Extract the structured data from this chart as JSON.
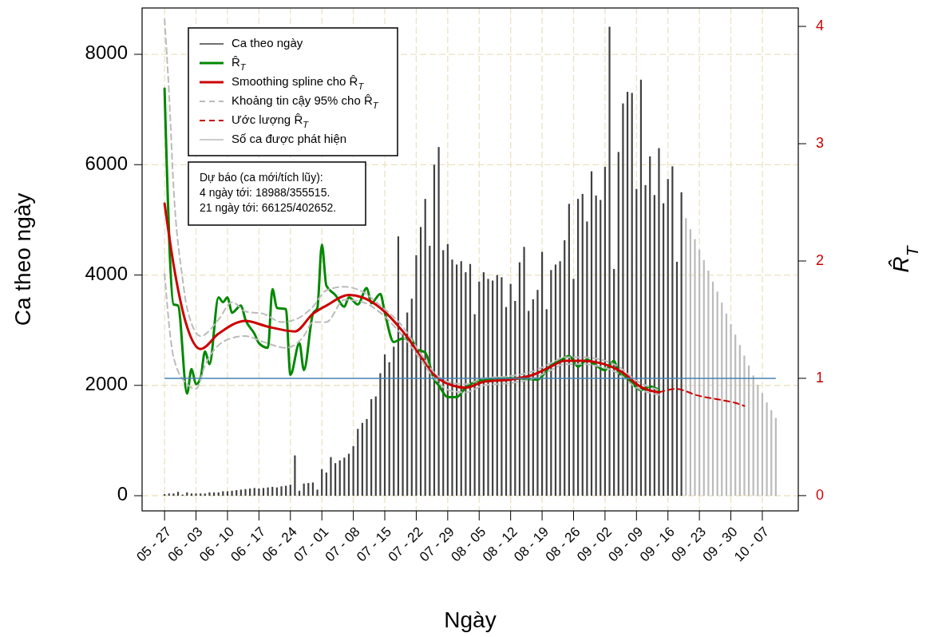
{
  "chart_data": {
    "type": "bar",
    "xlabel": "Ngày",
    "ylabel": "Ca theo ngày",
    "y2label": "R̂$_{T}$",
    "xlim": [
      "--05-22",
      "--10-15"
    ],
    "ylim": [
      -275,
      8840
    ],
    "y2lim": [
      -0.13,
      4.157
    ],
    "yticks": [
      0,
      2000,
      4000,
      6000,
      8000
    ],
    "y2ticks": [
      0,
      1,
      2,
      3,
      4
    ],
    "xticks": [
      {
        "value": "--05-27",
        "label": "05 - 27"
      },
      {
        "value": "--06-03",
        "label": "06 - 03"
      },
      {
        "value": "--06-10",
        "label": "06 - 10"
      },
      {
        "value": "--06-17",
        "label": "06 - 17"
      },
      {
        "value": "--06-24",
        "label": "06 - 24"
      },
      {
        "value": "--07-01",
        "label": "07 - 01"
      },
      {
        "value": "--07-08",
        "label": "07 - 08"
      },
      {
        "value": "--07-15",
        "label": "07 - 15"
      },
      {
        "value": "--07-22",
        "label": "07 - 22"
      },
      {
        "value": "--07-29",
        "label": "07 - 29"
      },
      {
        "value": "--08-05",
        "label": "08 - 05"
      },
      {
        "value": "--08-12",
        "label": "08 - 12"
      },
      {
        "value": "--08-19",
        "label": "08 - 19"
      },
      {
        "value": "--08-26",
        "label": "08 - 26"
      },
      {
        "value": "--09-02",
        "label": "09 - 02"
      },
      {
        "value": "--09-09",
        "label": "09 - 09"
      },
      {
        "value": "--09-16",
        "label": "09 - 16"
      },
      {
        "value": "--09-23",
        "label": "09 - 23"
      },
      {
        "value": "--09-30",
        "label": "09 - 30"
      },
      {
        "value": "--10-07",
        "label": "10 - 07"
      }
    ],
    "grid": true,
    "legend": "top left",
    "series": [
      {
        "name": "Ca theo ngày",
        "color": "#404040",
        "x": [
          "--05-27",
          "--05-28",
          "--05-29",
          "--05-30",
          "--05-31",
          "--06-01",
          "--06-02",
          "--06-03",
          "--06-04",
          "--06-05",
          "--06-06",
          "--06-07",
          "--06-08",
          "--06-09",
          "--06-10",
          "--06-11",
          "--06-12",
          "--06-13",
          "--06-14",
          "--06-15",
          "--06-16",
          "--06-17",
          "--06-18",
          "--06-19",
          "--06-20",
          "--06-21",
          "--06-22",
          "--06-23",
          "--06-24",
          "--06-25",
          "--06-26",
          "--06-27",
          "--06-28",
          "--06-29",
          "--06-30",
          "--07-01",
          "--07-02",
          "--07-03",
          "--07-04",
          "--07-05",
          "--07-06",
          "--07-07",
          "--07-08",
          "--07-09",
          "--07-10",
          "--07-11",
          "--07-12",
          "--07-13",
          "--07-14",
          "--07-15",
          "--07-16",
          "--07-17",
          "--07-18",
          "--07-19",
          "--07-20",
          "--07-21",
          "--07-22",
          "--07-23",
          "--07-24",
          "--07-25",
          "--07-26",
          "--07-27",
          "--07-28",
          "--07-29",
          "--07-30",
          "--07-31",
          "--08-01",
          "--08-02",
          "--08-03",
          "--08-04",
          "--08-05",
          "--08-06",
          "--08-07",
          "--08-08",
          "--08-09",
          "--08-10",
          "--08-11",
          "--08-12",
          "--08-13",
          "--08-14",
          "--08-15",
          "--08-16",
          "--08-17",
          "--08-18",
          "--08-19",
          "--08-20",
          "--08-21",
          "--08-22",
          "--08-23",
          "--08-24",
          "--08-25",
          "--08-26",
          "--08-27",
          "--08-28",
          "--08-29",
          "--08-30",
          "--08-31",
          "--09-01",
          "--09-02",
          "--09-03",
          "--09-04",
          "--09-05",
          "--09-06",
          "--09-07",
          "--09-08",
          "--09-09",
          "--09-10",
          "--09-11",
          "--09-12",
          "--09-13",
          "--09-14",
          "--09-15",
          "--09-16",
          "--09-17",
          "--09-18",
          "--09-19"
        ],
        "values": [
          30,
          40,
          40,
          70,
          20,
          60,
          40,
          40,
          40,
          40,
          60,
          60,
          60,
          80,
          80,
          90,
          100,
          110,
          120,
          130,
          140,
          130,
          140,
          150,
          160,
          150,
          170,
          180,
          200,
          730,
          90,
          220,
          230,
          240,
          110,
          480,
          420,
          700,
          590,
          640,
          690,
          760,
          900,
          1210,
          1320,
          1390,
          1750,
          1800,
          2220,
          2560,
          2420,
          2700,
          4700,
          2930,
          3320,
          3570,
          4360,
          4870,
          5380,
          4530,
          6000,
          6320,
          4450,
          4560,
          4280,
          4190,
          4250,
          4050,
          4200,
          3290,
          3880,
          4050,
          3930,
          3900,
          4000,
          3960,
          3420,
          3840,
          3530,
          4230,
          4510,
          3350,
          3560,
          3730,
          4420,
          3380,
          4090,
          4190,
          4250,
          4630,
          5290,
          3930,
          5380,
          5470,
          4970,
          5880,
          5440,
          5360,
          5960,
          8500,
          4110,
          6230,
          7110,
          7320,
          7300,
          5560,
          7540,
          5630,
          6150,
          5450,
          6300,
          5300,
          5740,
          5970,
          4240,
          5500
        ]
      },
      {
        "type": "line",
        "name": "R̂$_{T}$",
        "color": "#008800",
        "axis": "y2",
        "x": [
          "--05-27",
          "--05-29",
          "--05-30",
          "--06-01",
          "--06-02",
          "--06-03",
          "--06-04",
          "--06-05",
          "--06-06",
          "--06-08",
          "--06-09",
          "--06-10",
          "--06-11",
          "--06-13",
          "--06-14",
          "--06-16",
          "--06-17",
          "--06-19",
          "--06-20",
          "--06-21",
          "--06-23",
          "--06-24",
          "--06-26",
          "--06-27",
          "--06-29",
          "--06-30",
          "--07-01",
          "--07-02",
          "--07-04",
          "--07-06",
          "--07-07",
          "--07-09",
          "--07-11",
          "--07-12",
          "--07-14",
          "--07-15",
          "--07-17",
          "--07-19",
          "--07-21",
          "--07-22",
          "--07-24",
          "--07-26",
          "--07-27",
          "--07-29",
          "--07-31",
          "--08-02",
          "--08-04",
          "--08-06",
          "--08-10",
          "--08-14",
          "--08-18",
          "--08-21",
          "--08-23",
          "--08-25",
          "--08-27",
          "--08-29",
          "--08-31",
          "--09-02",
          "--09-04",
          "--09-05",
          "--09-07",
          "--09-10",
          "--09-12",
          "--09-14"
        ],
        "values": [
          3.47,
          1.63,
          1.62,
          0.87,
          1.08,
          0.95,
          1.0,
          1.23,
          1.12,
          1.69,
          1.65,
          1.69,
          1.56,
          1.62,
          1.5,
          1.38,
          1.3,
          1.26,
          1.76,
          1.6,
          1.59,
          1.03,
          1.3,
          1.07,
          1.55,
          1.6,
          2.14,
          1.79,
          1.71,
          1.61,
          1.69,
          1.63,
          1.77,
          1.64,
          1.72,
          1.56,
          1.31,
          1.34,
          1.33,
          1.25,
          1.22,
          0.99,
          0.94,
          0.84,
          0.84,
          0.92,
          0.97,
          0.99,
          1.0,
          1.0,
          0.99,
          1.11,
          1.15,
          1.19,
          1.1,
          1.16,
          1.11,
          1.07,
          1.15,
          1.05,
          1.0,
          0.9,
          0.93,
          0.9
        ]
      },
      {
        "type": "line",
        "name": "Smoothing spline cho R̂$_{T}$",
        "color": "#cc0000",
        "axis": "y2",
        "x": [
          "--05-27",
          "--05-29",
          "--06-01",
          "--06-04",
          "--06-08",
          "--06-14",
          "--06-19",
          "--06-25",
          "--06-29",
          "--07-02",
          "--07-07",
          "--07-10",
          "--07-14",
          "--07-19",
          "--07-23",
          "--07-26",
          "--07-30",
          "--08-02",
          "--08-06",
          "--08-12",
          "--08-17",
          "--08-21",
          "--08-24",
          "--08-28",
          "--09-01",
          "--09-05",
          "--09-07",
          "--09-09",
          "--09-14"
        ],
        "values": [
          2.49,
          1.97,
          1.44,
          1.25,
          1.38,
          1.49,
          1.44,
          1.4,
          1.55,
          1.62,
          1.71,
          1.69,
          1.6,
          1.4,
          1.19,
          1.03,
          0.94,
          0.92,
          0.97,
          0.99,
          1.03,
          1.1,
          1.15,
          1.15,
          1.13,
          1.07,
          1.02,
          0.95,
          0.88
        ]
      },
      {
        "type": "line",
        "name": "Khoảng tin cậy 95% cho R̂$_{T}$",
        "color": "#bbbbbb",
        "axis": "y2",
        "line_style": "dashed",
        "x": [
          "--05-27",
          "--05-28",
          "--05-29",
          "--05-31",
          "--06-01",
          "--06-04",
          "--06-08",
          "--06-11",
          "--06-14",
          "--06-18",
          "--06-22",
          "--06-25",
          "--06-29",
          "--07-02",
          "--07-06",
          "--07-10",
          "--07-14",
          "--07-19",
          "--07-23",
          "--07-26",
          "--07-30",
          "--08-02",
          "--08-06",
          "--08-12",
          "--08-17",
          "--08-21",
          "--08-24",
          "--08-28",
          "--09-01",
          "--09-05",
          "--09-09",
          "--09-14"
        ],
        "values": [
          4.06,
          3.43,
          2.63,
          1.85,
          1.6,
          1.36,
          1.5,
          1.65,
          1.57,
          1.55,
          1.48,
          1.5,
          1.61,
          1.75,
          1.78,
          1.74,
          1.62,
          1.44,
          1.21,
          1.05,
          0.96,
          0.95,
          1.0,
          1.02,
          1.06,
          1.13,
          1.18,
          1.18,
          1.16,
          1.1,
          0.98,
          0.9
        ]
      },
      {
        "type": "line",
        "name": "Ước lượng R̂$_{T}$",
        "color": "#cc0000",
        "axis": "y2",
        "line_style": "dashed",
        "x": [
          "--09-14",
          "--09-18",
          "--09-20",
          "--09-22",
          "--09-25",
          "--09-28",
          "--10-01",
          "--10-03"
        ],
        "values": [
          0.88,
          0.91,
          0.89,
          0.86,
          0.835,
          0.815,
          0.79,
          0.765
        ]
      },
      {
        "name": "Số ca được phát hiện",
        "color": "#bbbbbb",
        "x": [
          "--09-20",
          "--09-21",
          "--09-22",
          "--09-23",
          "--09-24",
          "--09-25",
          "--09-26",
          "--09-27",
          "--09-28",
          "--09-29",
          "--09-30",
          "--10-01",
          "--10-02",
          "--10-03",
          "--10-04",
          "--10-05",
          "--10-06",
          "--10-07",
          "--10-08",
          "--10-09",
          "--10-10"
        ],
        "values": [
          5030,
          4830,
          4650,
          4460,
          4270,
          4080,
          3880,
          3700,
          3500,
          3300,
          3110,
          2920,
          2730,
          2540,
          2360,
          2180,
          2010,
          1860,
          1690,
          1550,
          1410
        ]
      },
      {
        "type": "line",
        "color": "#bbbbbb",
        "axis": "y2",
        "line_style": "dashed",
        "x": [
          "--05-27",
          "--05-29",
          "--06-01",
          "--06-03",
          "--06-05",
          "--06-10",
          "--06-14",
          "--06-18",
          "--06-23",
          "--06-27",
          "--06-29",
          "--07-02",
          "--07-06",
          "--07-10",
          "--07-14",
          "--07-19",
          "--07-23",
          "--07-26",
          "--07-30",
          "--08-02",
          "--08-06",
          "--08-12",
          "--08-17",
          "--08-21",
          "--08-24",
          "--08-28",
          "--09-01",
          "--09-05",
          "--09-09",
          "--09-14"
        ],
        "values": [
          1.89,
          1.18,
          0.95,
          0.91,
          1.11,
          1.33,
          1.36,
          1.31,
          1.26,
          1.36,
          1.48,
          1.48,
          1.67,
          1.65,
          1.56,
          1.36,
          1.16,
          1.0,
          0.89,
          0.88,
          0.94,
          0.96,
          1.0,
          1.07,
          1.12,
          1.12,
          1.1,
          1.04,
          0.92,
          0.86
        ]
      }
    ],
    "ref_lines": [
      {
        "axis": "y2",
        "value": 1,
        "color": "#4682b4"
      }
    ],
    "annotations": [
      "Dự báo (ca mới/tích lũy):",
      "4 ngày tới: 18988/355515.",
      "21 ngày tới: 66125/402652."
    ]
  }
}
